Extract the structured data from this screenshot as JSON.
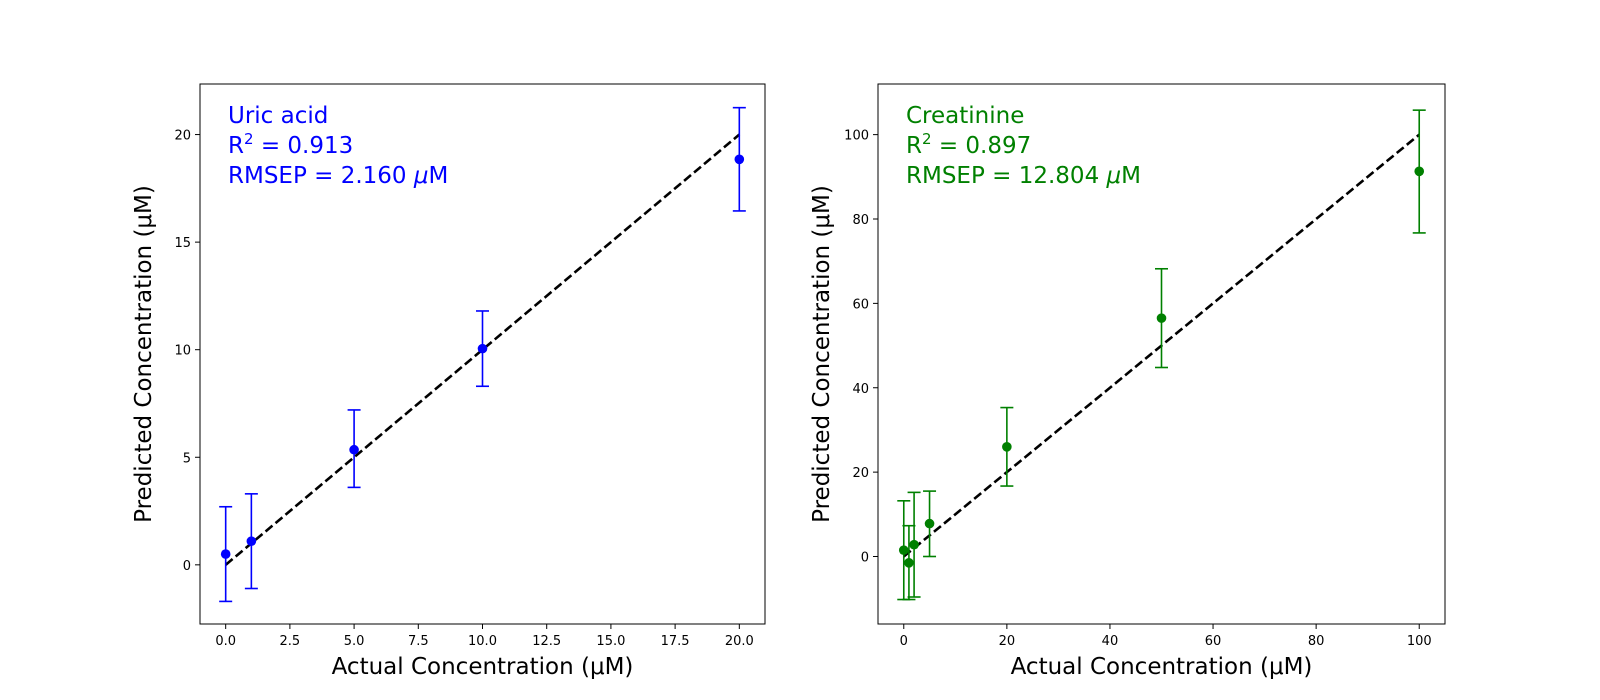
{
  "chart_data": [
    {
      "type": "scatter",
      "annotation": {
        "lines": [
          "Uric acid",
          "R2 = 0.913",
          "RMSEP = 2.160 μM"
        ],
        "name": "Uric acid",
        "r2_label": "R",
        "r2_sup": "2",
        "r2_value": " = 0.913",
        "rmsep_label": "RMSEP = 2.160 ",
        "rmsep_mu": "μ",
        "rmsep_unit": "M"
      },
      "color": "#0000ff",
      "xlabel": "Actual Concentration (μM)",
      "ylabel": "Predicted Concentration (μM)",
      "xlim": [
        -1,
        21
      ],
      "ylim": [
        -2.75,
        22.35
      ],
      "xticks": [
        0.0,
        2.5,
        5.0,
        7.5,
        10.0,
        12.5,
        15.0,
        17.5,
        20.0
      ],
      "xtick_labels": [
        "0.0",
        "2.5",
        "5.0",
        "7.5",
        "10.0",
        "12.5",
        "15.0",
        "17.5",
        "20.0"
      ],
      "yticks": [
        0,
        5,
        10,
        15,
        20
      ],
      "ytick_labels": [
        "0",
        "5",
        "10",
        "15",
        "20"
      ],
      "points": [
        {
          "x": 0,
          "y": 0.5,
          "err_low": -1.7,
          "err_high": 2.7
        },
        {
          "x": 1,
          "y": 1.1,
          "err_low": -1.1,
          "err_high": 3.3
        },
        {
          "x": 5,
          "y": 5.35,
          "err_low": 3.6,
          "err_high": 7.2
        },
        {
          "x": 10,
          "y": 10.05,
          "err_low": 8.3,
          "err_high": 11.8
        },
        {
          "x": 20,
          "y": 18.85,
          "err_low": 16.45,
          "err_high": 21.25
        }
      ],
      "ideal_line": {
        "x": [
          0,
          20
        ],
        "y": [
          0,
          20
        ],
        "style": "dashed",
        "color": "#000000"
      },
      "grid": false
    },
    {
      "type": "scatter",
      "annotation": {
        "lines": [
          "Creatinine",
          "R2 = 0.897",
          "RMSEP = 12.804 μM"
        ],
        "name": "Creatinine",
        "r2_label": "R",
        "r2_sup": "2",
        "r2_value": " = 0.897",
        "rmsep_label": "RMSEP = 12.804 ",
        "rmsep_mu": "μ",
        "rmsep_unit": "M"
      },
      "color": "#008000",
      "xlabel": "Actual Concentration (μM)",
      "ylabel": "Predicted Concentration (μM)",
      "xlim": [
        -5,
        105
      ],
      "ylim": [
        -16,
        112
      ],
      "xticks": [
        0,
        20,
        40,
        60,
        80,
        100
      ],
      "xtick_labels": [
        "0",
        "20",
        "40",
        "60",
        "80",
        "100"
      ],
      "yticks": [
        0,
        20,
        40,
        60,
        80,
        100
      ],
      "ytick_labels": [
        "0",
        "20",
        "40",
        "60",
        "80",
        "100"
      ],
      "points": [
        {
          "x": 0,
          "y": 1.5,
          "err_low": -10.2,
          "err_high": 13.2
        },
        {
          "x": 1,
          "y": -1.5,
          "err_low": -10.2,
          "err_high": 7.3
        },
        {
          "x": 2,
          "y": 2.8,
          "err_low": -9.6,
          "err_high": 15.2
        },
        {
          "x": 5,
          "y": 7.8,
          "err_low": 0.0,
          "err_high": 15.5
        },
        {
          "x": 20,
          "y": 26.0,
          "err_low": 16.7,
          "err_high": 35.3
        },
        {
          "x": 50,
          "y": 56.5,
          "err_low": 44.8,
          "err_high": 68.2
        },
        {
          "x": 100,
          "y": 91.3,
          "err_low": 76.7,
          "err_high": 105.8
        }
      ],
      "ideal_line": {
        "x": [
          0,
          100
        ],
        "y": [
          0,
          100
        ],
        "style": "dashed",
        "color": "#000000"
      },
      "grid": false
    }
  ]
}
